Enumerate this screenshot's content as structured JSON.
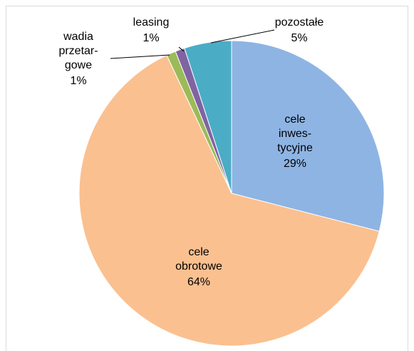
{
  "chart_data": {
    "type": "pie",
    "categories": [
      "cele\ninwes-\ntycyjne",
      "cele\nobrotowe",
      "wadia\nprzetar-\ngowe",
      "leasing",
      "pozostałe"
    ],
    "values": [
      29,
      64,
      1,
      1,
      5
    ],
    "value_labels": [
      "29%",
      "64%",
      "1%",
      "1%",
      "5%"
    ],
    "colors": [
      "#8eb4e3",
      "#fac090",
      "#9bbb59",
      "#8064a2",
      "#4bacc6"
    ]
  }
}
